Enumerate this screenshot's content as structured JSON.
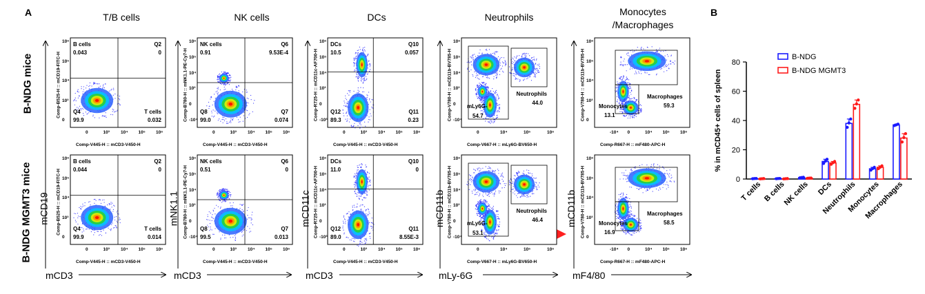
{
  "panel_a_label": "A",
  "panel_b_label": "B",
  "row_labels": [
    "B-NDG mice",
    "B-NDG MGMT3 mice"
  ],
  "columns": [
    {
      "title": "T/B cells",
      "xaxis_big": "mCD3",
      "yaxis_big": "mCD19",
      "xparam": "Comp-V445-H :: mCD3-V450-H",
      "yparam": "Comp-B525-H :: mCD19-FITC-H",
      "xticks": [
        "0",
        "10³",
        "10⁴",
        "10⁵",
        "10⁶"
      ],
      "yticks": [
        "10⁶",
        "10⁵",
        "10⁴",
        "10³",
        "0"
      ],
      "rows": [
        {
          "labels": [
            [
              "B cells",
              "0.043"
            ],
            [
              "Q2",
              "0"
            ],
            [
              "Q4",
              "99.9"
            ],
            [
              "T cells",
              "0.032"
            ]
          ]
        },
        {
          "labels": [
            [
              "B cells",
              "0.044"
            ],
            [
              "Q2",
              "0"
            ],
            [
              "Q4",
              "99.9"
            ],
            [
              "T cells",
              "0.014"
            ]
          ]
        }
      ]
    },
    {
      "title": "NK cells",
      "xaxis_big": "mCD3",
      "yaxis_big": "mNK1.1",
      "xparam": "Comp-V445-H :: mCD3-V450-H",
      "yparam": "Comp-B780-H :: mNK1.1-PE-Cy7-H",
      "xticks": [
        "0",
        "10³",
        "10⁴",
        "10⁵",
        "10⁶"
      ],
      "yticks": [
        "10⁶",
        "10⁵",
        "10⁴",
        "10³",
        "0",
        "-10⁴"
      ],
      "rows": [
        {
          "labels": [
            [
              "NK cells",
              "0.91"
            ],
            [
              "Q6",
              "9.53E-4"
            ],
            [
              "Q8",
              "99.0"
            ],
            [
              "Q7",
              "0.074"
            ]
          ]
        },
        {
          "labels": [
            [
              "NK cells",
              "0.51"
            ],
            [
              "Q6",
              "0"
            ],
            [
              "Q8",
              "99.5"
            ],
            [
              "Q7",
              "0.013"
            ]
          ]
        }
      ]
    },
    {
      "title": "DCs",
      "xaxis_big": "mCD3",
      "yaxis_big": "mCD11c",
      "xparam": "Comp-V445-H :: mCD3-V450-H",
      "yparam": "Comp-R725-H :: mCD11c-AF700-H",
      "xticks": [
        "0",
        "10³",
        "10⁴",
        "10⁵",
        "10⁶"
      ],
      "yticks": [
        "10⁶",
        "10⁵",
        "10⁴",
        "10³",
        "0",
        "-10³"
      ],
      "rows": [
        {
          "labels": [
            [
              "DCs",
              "10.5"
            ],
            [
              "Q10",
              "0.057"
            ],
            [
              "Q12",
              "89.3"
            ],
            [
              "Q11",
              "0.23"
            ]
          ]
        },
        {
          "labels": [
            [
              "DCs",
              "11.0"
            ],
            [
              "Q10",
              "0"
            ],
            [
              "Q12",
              "89.0"
            ],
            [
              "Q11",
              "8.55E-3"
            ]
          ]
        }
      ]
    },
    {
      "title": "Neutrophils",
      "xaxis_big": "mLy-6G",
      "yaxis_big": "mCD11b",
      "xparam": "Comp-V667-H :: mLy6G-BV650-H",
      "yparam": "Comp-V780-H :: mCD11b-BV785-H",
      "xticks": [
        "0",
        "10⁴",
        "10⁵",
        "10⁶"
      ],
      "yticks": [
        "10⁶",
        "10⁵",
        "10⁴",
        "10³",
        "0",
        "-10⁴"
      ],
      "rows": [
        {
          "labels": [
            [
              "Neutrophils",
              "44.0"
            ],
            [
              "mLy6G-",
              "54.7"
            ]
          ]
        },
        {
          "labels": [
            [
              "Neutrophils",
              "46.4"
            ],
            [
              "mLy6G-",
              "53.1"
            ]
          ]
        }
      ]
    },
    {
      "title": "Monocytes /Macrophages",
      "xaxis_big": "mF4/80",
      "yaxis_big": "mCD11b",
      "xparam": "Comp-R667-H :: mF480-APC-H",
      "yparam": "Comp-V780-H :: mCD11b-BV785-H",
      "xticks": [
        "-10⁴",
        "0",
        "10⁴",
        "10⁵",
        "10⁶"
      ],
      "yticks": [
        "10⁶",
        "10⁵",
        "10⁴",
        "10³",
        "0"
      ],
      "rows": [
        {
          "labels": [
            [
              "Macrophages",
              "59.3"
            ],
            [
              "Monocytes",
              "13.1"
            ]
          ]
        },
        {
          "labels": [
            [
              "Macrophages",
              "58.5"
            ],
            [
              "Monocytes",
              "16.9"
            ]
          ]
        }
      ]
    }
  ],
  "chart_data": {
    "type": "bar",
    "title": "",
    "xlabel": "",
    "ylabel": "% in mCD45+ cells of spleen",
    "ylim": [
      0,
      80
    ],
    "yticks": [
      "0",
      "20",
      "40",
      "60",
      "80"
    ],
    "categories": [
      "T cells",
      "B cells",
      "NK cells",
      "DCs",
      "Neutrophils",
      "Monocytes",
      "Macrophages"
    ],
    "series": [
      {
        "name": "B-NDG",
        "color": "#1a1aff",
        "values": [
          0.3,
          0.3,
          1.0,
          12.0,
          38.0,
          7.0,
          37.0
        ],
        "errors": [
          0.1,
          0.1,
          0.2,
          1.5,
          3.0,
          1.0,
          0.5
        ]
      },
      {
        "name": "B-NDG MGMT3",
        "color": "#ff1a1a",
        "values": [
          0.2,
          0.2,
          0.6,
          11.0,
          51.0,
          8.0,
          28.0
        ],
        "errors": [
          0.1,
          0.1,
          0.1,
          1.0,
          3.0,
          1.0,
          3.0
        ]
      }
    ],
    "legend": "top-right"
  }
}
